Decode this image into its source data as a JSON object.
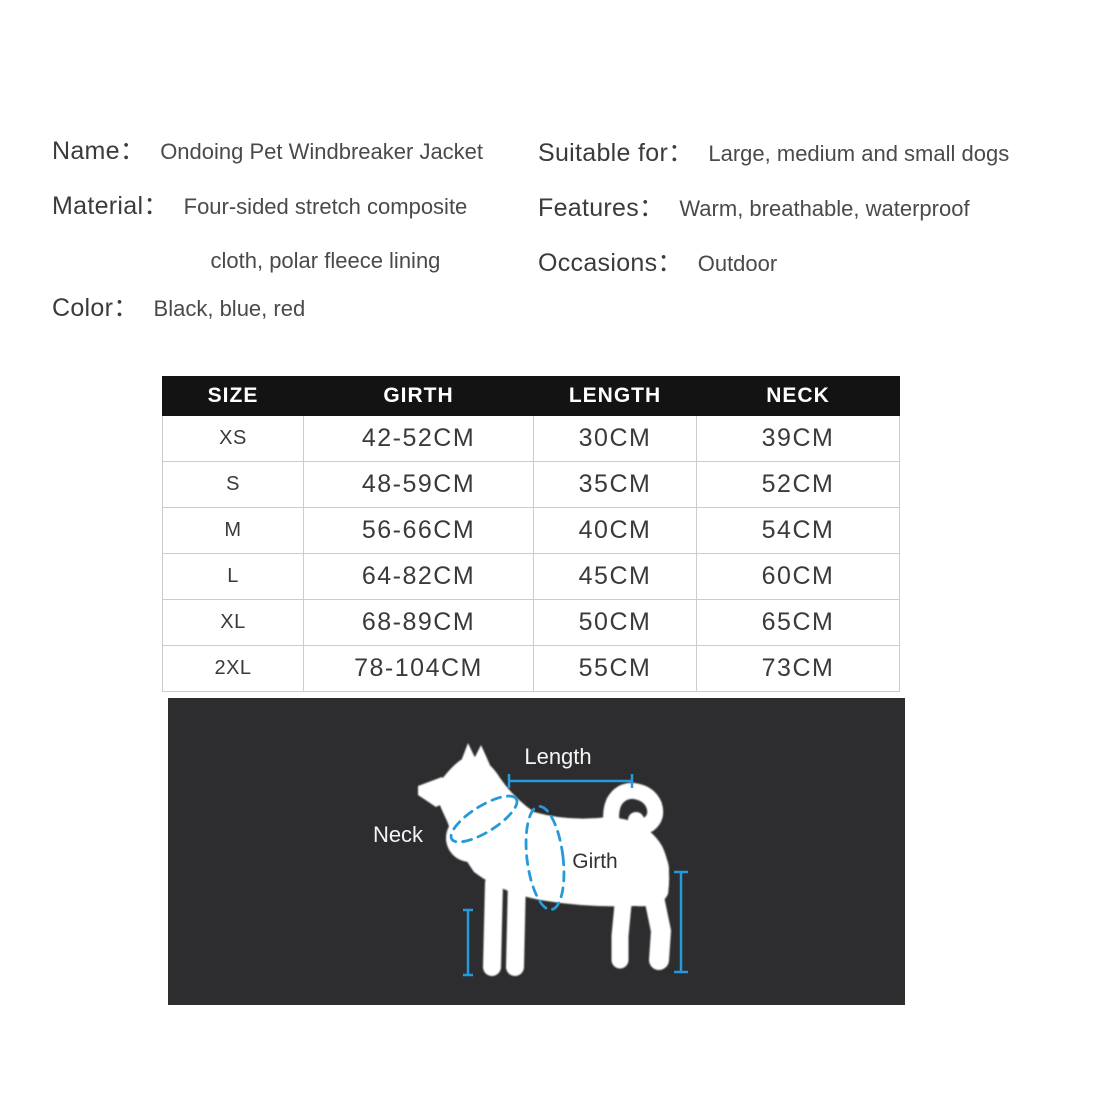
{
  "product": {
    "name_label": "Name：",
    "name_value": "Ondoing Pet Windbreaker Jacket",
    "material_label": "Material：",
    "material_value_line1": "Four-sided stretch composite",
    "material_value_line2": "cloth, polar fleece lining",
    "color_label": "Color：",
    "color_value": "Black, blue, red",
    "suitable_label": "Suitable for：",
    "suitable_value": "Large, medium and small dogs",
    "features_label": "Features：",
    "features_value": "Warm, breathable, waterproof",
    "occasions_label": "Occasions：",
    "occasions_value": "Outdoor"
  },
  "size_table": {
    "columns": [
      "SIZE",
      "GIRTH",
      "LENGTH",
      "NECK"
    ],
    "rows": [
      [
        "XS",
        "42-52CM",
        "30CM",
        "39CM"
      ],
      [
        "S",
        "48-59CM",
        "35CM",
        "52CM"
      ],
      [
        "M",
        "56-66CM",
        "40CM",
        "54CM"
      ],
      [
        "L",
        "64-82CM",
        "45CM",
        "60CM"
      ],
      [
        "XL",
        "68-89CM",
        "50CM",
        "65CM"
      ],
      [
        "2XL",
        "78-104CM",
        "55CM",
        "73CM"
      ]
    ]
  },
  "diagram": {
    "length_label": "Length",
    "neck_label": "Neck",
    "girth_label": "Girth"
  },
  "colors": {
    "accent_blue": "#259adb",
    "panel_bg": "#2d2d2f",
    "table_header_bg": "#131313",
    "text_dark": "#3b3b3b"
  }
}
